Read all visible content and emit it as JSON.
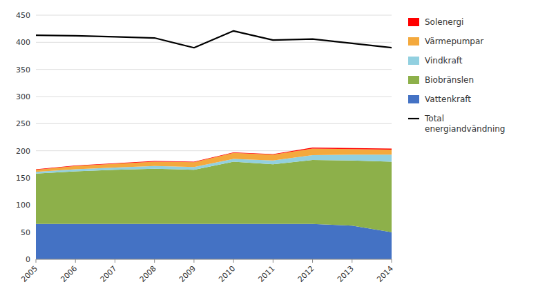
{
  "chart_data": {
    "type": "area",
    "stacked": true,
    "grid": "y",
    "legend": "right",
    "x": [
      2005,
      2006,
      2007,
      2008,
      2009,
      2010,
      2011,
      2012,
      2013,
      2014
    ],
    "xlim": [
      2005,
      2014
    ],
    "xticks": [
      2005,
      2006,
      2007,
      2008,
      2009,
      2010,
      2011,
      2012,
      2013,
      2014
    ],
    "ylim": [
      0,
      450
    ],
    "yticks": [
      0,
      50,
      100,
      150,
      200,
      250,
      300,
      350,
      400,
      450
    ],
    "series": [
      {
        "name": "Vattenkraft",
        "type": "area",
        "color": "#4472C4",
        "values": [
          65,
          65,
          65,
          65,
          65,
          65,
          65,
          65,
          62,
          50
        ]
      },
      {
        "name": "Biobränslen",
        "type": "area",
        "color": "#8DB04A",
        "values": [
          93,
          97,
          100,
          102,
          100,
          115,
          110,
          118,
          120,
          130
        ]
      },
      {
        "name": "Vindkraft",
        "type": "area",
        "color": "#92D0E0",
        "values": [
          3,
          4,
          4,
          5,
          5,
          5,
          7,
          9,
          11,
          13
        ]
      },
      {
        "name": "Värmepumpar",
        "type": "area",
        "color": "#F4A93D",
        "values": [
          4,
          6,
          7,
          8,
          9,
          11,
          11,
          12,
          10,
          9
        ]
      },
      {
        "name": "Solenergi",
        "type": "area",
        "color": "#FF0000",
        "values": [
          1,
          1,
          1,
          1,
          1,
          1,
          1,
          2,
          2,
          2
        ]
      },
      {
        "name": "Total\nenergiandvändning",
        "type": "line",
        "color": "#000000",
        "values": [
          413,
          412,
          410,
          408,
          390,
          421,
          404,
          406,
          398,
          390
        ]
      }
    ]
  }
}
